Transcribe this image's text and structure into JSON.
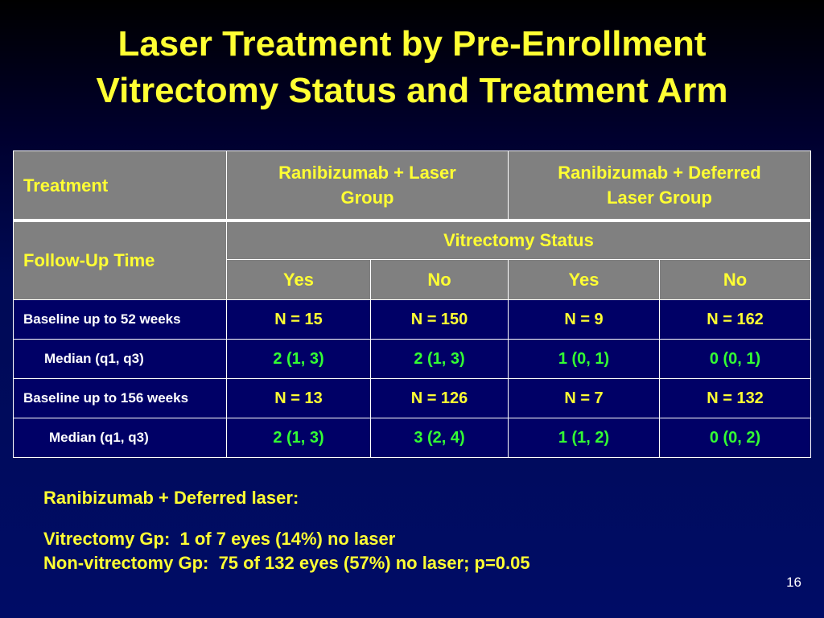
{
  "title": {
    "line1": "Laser Treatment by Pre-Enrollment",
    "line2": "Vitrectomy Status and Treatment Arm"
  },
  "table": {
    "treatment_label": "Treatment",
    "group1_line1": "Ranibizumab + Laser",
    "group1_line2": "Group",
    "group2_line1": "Ranibizumab + Deferred",
    "group2_line2": "Laser Group",
    "vitrectomy_status": "Vitrectomy Status",
    "follow_up_label": "Follow-Up Time",
    "columns": [
      "Yes",
      "No",
      "Yes",
      "No"
    ],
    "rows": [
      {
        "label": "Baseline up to 52 weeks",
        "values": [
          "N = 15",
          "N = 150",
          "N = 9",
          "N = 162"
        ]
      },
      {
        "label": "Median (q1, q3)",
        "values": [
          "2 (1, 3)",
          "2 (1, 3)",
          "1 (0, 1)",
          "0 (0, 1)"
        ]
      },
      {
        "label": "Baseline up to 156 weeks",
        "values": [
          "N = 13",
          "N = 126",
          "N = 7",
          "N = 132"
        ]
      },
      {
        "label": "Median (q1, q3)",
        "values": [
          "2 (1, 3)",
          "3 (2, 4)",
          "1 (1, 2)",
          "0 (0, 2)"
        ]
      }
    ]
  },
  "notes": {
    "heading": "Ranibizumab + Deferred laser:",
    "line1": "Vitrectomy Gp:  1 of 7 eyes (14%) no laser",
    "line2": "Non-vitrectomy Gp:  75 of 132 eyes (57%) no laser; p=0.05"
  },
  "slide_number": "16",
  "colors": {
    "title": "#ffff33",
    "header_bg": "#808080",
    "cell_bg": "#000066",
    "median_text": "#33ff33"
  }
}
